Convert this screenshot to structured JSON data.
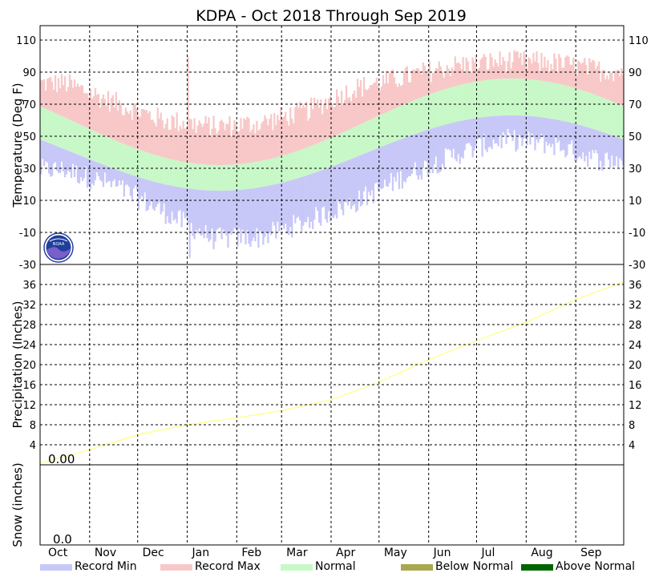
{
  "chart_data": [
    {
      "type": "area",
      "panel": "temperature",
      "title": "KDPA - Oct 2018 Through Sep 2019",
      "ylabel": "Temperature (Deg F)",
      "ylim": [
        -30,
        120
      ],
      "yticks": [
        -30,
        -10,
        10,
        30,
        50,
        70,
        90,
        110
      ],
      "grid": true,
      "months": [
        "Oct",
        "Nov",
        "Dec",
        "Jan",
        "Feb",
        "Mar",
        "Apr",
        "May",
        "Jun",
        "Jul",
        "Aug",
        "Sep"
      ],
      "month_days": [
        31,
        30,
        31,
        31,
        28,
        31,
        30,
        31,
        30,
        31,
        31,
        30
      ],
      "normal": {
        "high_min": 32,
        "high_max": 86,
        "low_min": 16,
        "low_max": 63,
        "coldest_day_index": 112,
        "warmest_day_index": 293
      },
      "record_max": {
        "anchors_month_mid": [
          83,
          71,
          60,
          56,
          58,
          66,
          80,
          87,
          94,
          97,
          96,
          91
        ],
        "jitter": 7,
        "spike": {
          "month": "Jan",
          "value": 100
        }
      },
      "record_min": {
        "anchors_month_mid": [
          29,
          19,
          3,
          -14,
          -13,
          -3,
          9,
          25,
          38,
          48,
          45,
          35
        ],
        "jitter": 7,
        "extreme": -26
      }
    },
    {
      "type": "line",
      "panel": "precipitation",
      "ylabel": "Precipitation (Inches)",
      "ylim": [
        0,
        40
      ],
      "yticks": [
        4,
        8,
        12,
        16,
        20,
        24,
        28,
        32,
        36
      ],
      "grid": true,
      "annotation": "0.00",
      "series": [
        {
          "x": [
            "Oct",
            "Nov",
            "Dec",
            "Jan",
            "Feb",
            "Mar",
            "Apr",
            "May",
            "Jun",
            "Jul",
            "Aug",
            "Sep",
            "Sep 30"
          ],
          "values": [
            0.3,
            3.0,
            6.0,
            8.0,
            9.4,
            10.8,
            13.0,
            16.5,
            21.0,
            24.8,
            28.5,
            33.0,
            36.5
          ]
        }
      ]
    },
    {
      "type": "line",
      "panel": "snow",
      "ylabel": "Snow (inches)",
      "annotation": "0.0",
      "series": []
    }
  ],
  "legend": [
    {
      "label": "Record Min",
      "color": "#c8c8f8"
    },
    {
      "label": "Record Max",
      "color": "#f8c8c8"
    },
    {
      "label": "Normal",
      "color": "#c8f8c8"
    },
    {
      "label": "Below Normal",
      "color": "#a8a850"
    },
    {
      "label": "Above Normal",
      "color": "#006400"
    }
  ],
  "colors": {
    "record_max": "#f8c8c8",
    "record_min": "#c8c8f8",
    "normal": "#c8f8c8",
    "precip_line": "#ffff80"
  }
}
